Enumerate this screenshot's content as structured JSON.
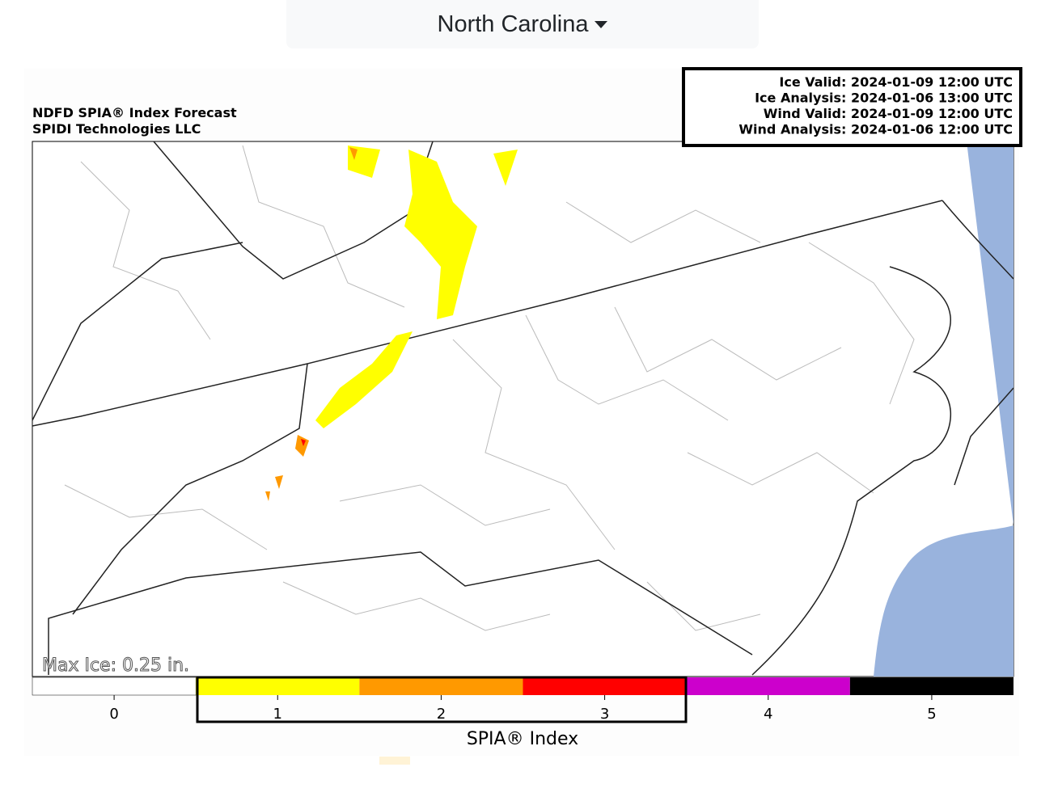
{
  "dropdown": {
    "label": "North Carolina"
  },
  "map": {
    "title_lines": [
      "NDFD SPIA® Index Forecast",
      "SPIDI Technologies LLC"
    ],
    "times": [
      "Ice Valid: 2024-01-09 12:00 UTC",
      "Ice Analysis: 2024-01-06 13:00 UTC",
      "Wind Valid: 2024-01-09 12:00 UTC",
      "Wind Analysis: 2024-01-06 12:00 UTC"
    ],
    "max_ice": "Max Ice: 0.25 in."
  },
  "colorbar": {
    "label": "SPIA® Index",
    "ticks": [
      0,
      1,
      2,
      3,
      4,
      5
    ],
    "colors": [
      "#ffffff",
      "#ffff00",
      "#ff9900",
      "#ff0000",
      "#cc00cc",
      "#000000"
    ]
  }
}
